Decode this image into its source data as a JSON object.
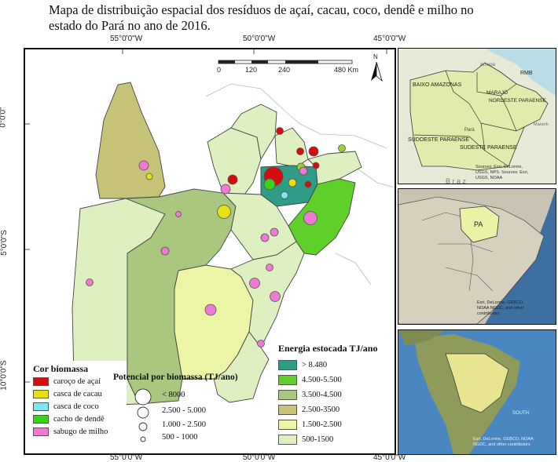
{
  "title": {
    "line1": "Mapa de distribuição espacial dos resíduos de açaí, cacau, coco, dendê e milho no",
    "line2": "estado do Pará no ano de 2016."
  },
  "coords": {
    "top_55": "55°0'0\"W",
    "top_50": "50°0'0\"W",
    "top_45": "45°0'0\"W",
    "bottom_55": "55°0'0\"W",
    "bottom_50": "50°0'0\"W",
    "bottom_45": "45°0'0\"W",
    "left_0": "0°0'0\"",
    "left_5": "5°0'0\"S",
    "left_10": "10°0'0\"S"
  },
  "scalebar": {
    "ticks": [
      "0",
      "120",
      "240",
      "480 Km"
    ],
    "north": "N"
  },
  "legend_cor": {
    "title": "Cor biomassa",
    "items": [
      {
        "label": "caroço de açaí",
        "color": "#d40d0d"
      },
      {
        "label": "casca de cacau",
        "color": "#e8e010"
      },
      {
        "label": "casca de coco",
        "color": "#7fe6f0"
      },
      {
        "label": "cacho de dendê",
        "color": "#3cd11a"
      },
      {
        "label": "sabugo de milho",
        "color": "#ee7ad2"
      }
    ]
  },
  "legend_potencial": {
    "title": "Potencial por biomassa (TJ/ano)",
    "items": [
      "< 8000",
      "2.500 - 5.000",
      "1.000 - 2.500",
      "500 - 1000"
    ]
  },
  "legend_energia": {
    "title": "Energia estocada TJ/ano",
    "items": [
      {
        "label": "> 8.480",
        "color": "#2e9c87"
      },
      {
        "label": "4.500-5.500",
        "color": "#5fcf2a"
      },
      {
        "label": "3.500-4.500",
        "color": "#a9c77f"
      },
      {
        "label": "2.500-3500",
        "color": "#c6c277"
      },
      {
        "label": "1.500-2.500",
        "color": "#ecf4a6"
      },
      {
        "label": "500-1500",
        "color": "#dff0c0"
      }
    ]
  },
  "inset_regions": {
    "amapa": "Amapá",
    "baixo": "BAIXO AMAZONAS",
    "marajo": "MARAJÓ",
    "rmb": "RMB",
    "nordeste": "NORDESTE PARAENSE",
    "para": "Pará",
    "maranh": "Maranh",
    "sudoeste": "SUDOESTE PARAENSE",
    "sudeste": "SUDESTE PARAENSE",
    "braz": "B r a z",
    "credits": [
      "Sources: Esri, DeLorme,",
      "USGS, NPS. Sources: Esri,",
      "USGS, NOAA"
    ]
  },
  "inset_brazil": {
    "pa": "PA",
    "credits": [
      "Esri, DeLorme, GEBCO,",
      "NOAA NGDC, and other",
      "contributors"
    ]
  },
  "inset_sa": {
    "south": "SOUTH",
    "credits": [
      "Esri, DeLorme, GEBCO, NOAA",
      "NGDC, and other contributors"
    ]
  }
}
